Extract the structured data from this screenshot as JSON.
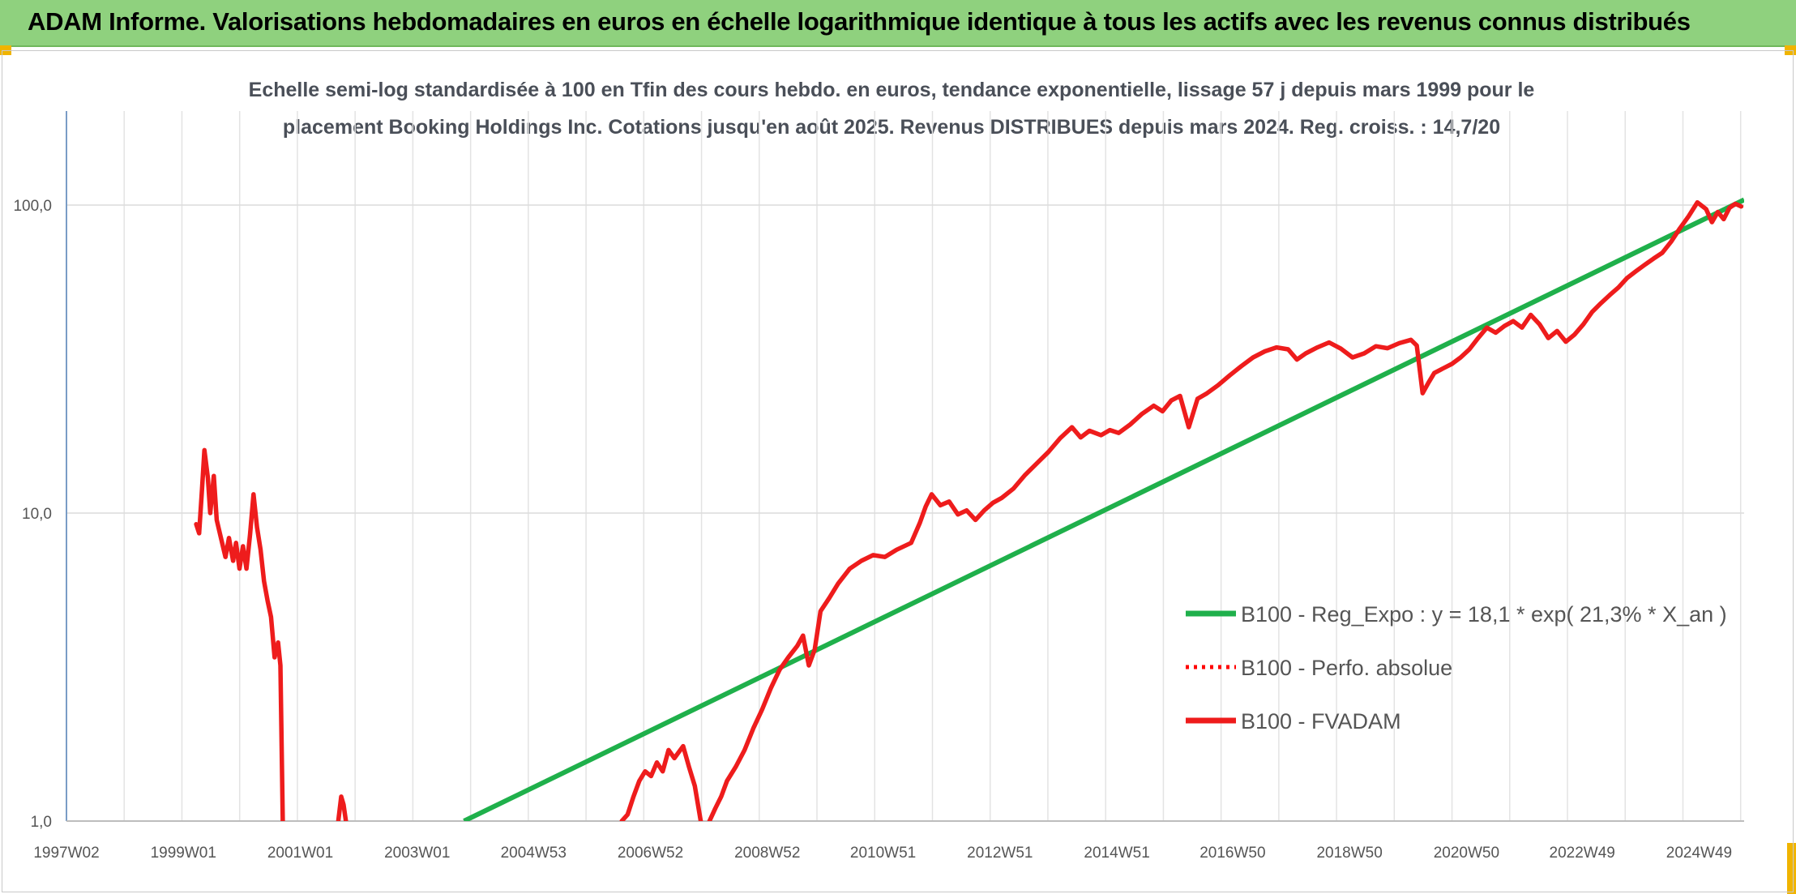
{
  "header": {
    "title": "ADAM Informe. Valorisations hebdomadaires en euros en échelle logarithmique identique à tous les actifs avec les revenus connus distribués"
  },
  "chart_data": {
    "type": "line",
    "title_line1": "Echelle semi-log standardisée à 100 en Tfin des cours hebdo. en euros, tendance exponentielle, lissage 57 j depuis mars 1999 pour le",
    "title_line2": "placement Booking Holdings Inc. Cotations jusqu'en août 2025. Revenus DISTRIBUES depuis mars 2024. Reg. croiss. : 14,7/20",
    "y_scale": "log",
    "ylim": [
      1,
      180
    ],
    "y_ticks": [
      {
        "value": 1,
        "label": "1,0"
      },
      {
        "value": 10,
        "label": "10,0"
      },
      {
        "value": 100,
        "label": "100,0"
      }
    ],
    "xlim": [
      1997.0,
      2025.7
    ],
    "x_ticks": [
      {
        "value": 1997.0,
        "label": "1997W02"
      },
      {
        "value": 1999.0,
        "label": "1999W01"
      },
      {
        "value": 2001.0,
        "label": "2001W01"
      },
      {
        "value": 2003.0,
        "label": "2003W01"
      },
      {
        "value": 2004.99,
        "label": "2004W53"
      },
      {
        "value": 2006.99,
        "label": "2006W52"
      },
      {
        "value": 2008.99,
        "label": "2008W52"
      },
      {
        "value": 2010.97,
        "label": "2010W51"
      },
      {
        "value": 2012.97,
        "label": "2012W51"
      },
      {
        "value": 2014.97,
        "label": "2014W51"
      },
      {
        "value": 2016.95,
        "label": "2016W50"
      },
      {
        "value": 2018.95,
        "label": "2018W50"
      },
      {
        "value": 2020.95,
        "label": "2020W50"
      },
      {
        "value": 2022.93,
        "label": "2022W49"
      },
      {
        "value": 2024.93,
        "label": "2024W49"
      }
    ],
    "grid": "vertical-and-horizontal",
    "legend_position": "right-center",
    "series": [
      {
        "name": "B100 - Reg_Expo : y = 18,1 * exp( 21,3% *  X_an )",
        "color": "#1fb04b",
        "style": "solid",
        "points": [
          [
            2003.8,
            1.0
          ],
          [
            2025.7,
            104
          ]
        ]
      },
      {
        "name": "B100 - Perfo. absolue",
        "color": "#ff0000",
        "style": "dotted",
        "points": []
      },
      {
        "name": "B100 - FVADAM",
        "color": "#ee1c1c",
        "style": "solid",
        "segments": [
          [
            [
              1999.22,
              9.2
            ],
            [
              1999.27,
              8.6
            ],
            [
              1999.32,
              12.0
            ],
            [
              1999.36,
              16.0
            ],
            [
              1999.42,
              13.0
            ],
            [
              1999.46,
              10.0
            ],
            [
              1999.52,
              13.2
            ],
            [
              1999.57,
              9.5
            ],
            [
              1999.65,
              8.2
            ],
            [
              1999.72,
              7.2
            ],
            [
              1999.78,
              8.3
            ],
            [
              1999.85,
              7.0
            ],
            [
              1999.9,
              8.0
            ],
            [
              1999.96,
              6.6
            ],
            [
              2000.02,
              7.8
            ],
            [
              2000.08,
              6.6
            ],
            [
              2000.14,
              8.5
            ],
            [
              2000.2,
              11.5
            ],
            [
              2000.26,
              9.0
            ],
            [
              2000.32,
              7.6
            ],
            [
              2000.38,
              6.0
            ],
            [
              2000.44,
              5.2
            ],
            [
              2000.5,
              4.6
            ],
            [
              2000.56,
              3.4
            ],
            [
              2000.62,
              3.8
            ],
            [
              2000.66,
              3.2
            ],
            [
              2000.7,
              1.0
            ]
          ],
          [
            [
              2001.65,
              1.0
            ],
            [
              2001.7,
              1.2
            ],
            [
              2001.74,
              1.13
            ],
            [
              2001.78,
              1.0
            ]
          ],
          [
            [
              2006.5,
              1.0
            ],
            [
              2006.6,
              1.05
            ],
            [
              2006.7,
              1.2
            ],
            [
              2006.8,
              1.35
            ],
            [
              2006.9,
              1.45
            ],
            [
              2007.0,
              1.4
            ],
            [
              2007.1,
              1.55
            ],
            [
              2007.2,
              1.45
            ],
            [
              2007.3,
              1.7
            ],
            [
              2007.4,
              1.6
            ],
            [
              2007.55,
              1.75
            ],
            [
              2007.65,
              1.5
            ],
            [
              2007.75,
              1.3
            ],
            [
              2007.85,
              1.0
            ]
          ],
          [
            [
              2008.0,
              1.0
            ],
            [
              2008.1,
              1.1
            ],
            [
              2008.2,
              1.2
            ],
            [
              2008.3,
              1.35
            ],
            [
              2008.45,
              1.5
            ],
            [
              2008.6,
              1.7
            ],
            [
              2008.75,
              2.0
            ],
            [
              2008.9,
              2.3
            ],
            [
              2009.05,
              2.7
            ],
            [
              2009.2,
              3.1
            ],
            [
              2009.35,
              3.4
            ],
            [
              2009.5,
              3.7
            ],
            [
              2009.6,
              4.0
            ],
            [
              2009.7,
              3.2
            ],
            [
              2009.8,
              3.6
            ],
            [
              2009.9,
              4.8
            ],
            [
              2010.05,
              5.3
            ],
            [
              2010.2,
              5.9
            ],
            [
              2010.4,
              6.6
            ],
            [
              2010.6,
              7.0
            ],
            [
              2010.8,
              7.3
            ],
            [
              2011.0,
              7.2
            ],
            [
              2011.2,
              7.6
            ],
            [
              2011.45,
              8.0
            ],
            [
              2011.6,
              9.3
            ],
            [
              2011.7,
              10.5
            ],
            [
              2011.8,
              11.5
            ],
            [
              2011.95,
              10.6
            ],
            [
              2012.1,
              10.9
            ],
            [
              2012.25,
              9.9
            ],
            [
              2012.4,
              10.2
            ],
            [
              2012.55,
              9.5
            ],
            [
              2012.7,
              10.2
            ],
            [
              2012.85,
              10.8
            ],
            [
              2013.0,
              11.2
            ],
            [
              2013.2,
              12.0
            ],
            [
              2013.4,
              13.3
            ],
            [
              2013.6,
              14.5
            ],
            [
              2013.8,
              15.8
            ],
            [
              2014.0,
              17.5
            ],
            [
              2014.2,
              19.0
            ],
            [
              2014.35,
              17.6
            ],
            [
              2014.5,
              18.5
            ],
            [
              2014.7,
              17.9
            ],
            [
              2014.85,
              18.6
            ],
            [
              2015.0,
              18.2
            ],
            [
              2015.2,
              19.4
            ],
            [
              2015.4,
              21.0
            ],
            [
              2015.6,
              22.3
            ],
            [
              2015.75,
              21.4
            ],
            [
              2015.9,
              23.2
            ],
            [
              2016.05,
              24.0
            ],
            [
              2016.2,
              19.0
            ],
            [
              2016.35,
              23.5
            ],
            [
              2016.5,
              24.4
            ],
            [
              2016.7,
              26.0
            ],
            [
              2016.9,
              28.0
            ],
            [
              2017.1,
              30.0
            ],
            [
              2017.3,
              32.0
            ],
            [
              2017.5,
              33.5
            ],
            [
              2017.7,
              34.5
            ],
            [
              2017.9,
              34.0
            ],
            [
              2018.05,
              31.5
            ],
            [
              2018.2,
              33.0
            ],
            [
              2018.4,
              34.5
            ],
            [
              2018.6,
              35.8
            ],
            [
              2018.8,
              34.2
            ],
            [
              2019.0,
              32.0
            ],
            [
              2019.2,
              33.0
            ],
            [
              2019.4,
              34.8
            ],
            [
              2019.6,
              34.3
            ],
            [
              2019.8,
              35.6
            ],
            [
              2020.0,
              36.5
            ],
            [
              2020.1,
              35.0
            ],
            [
              2020.2,
              24.5
            ],
            [
              2020.3,
              26.5
            ],
            [
              2020.4,
              28.5
            ],
            [
              2020.55,
              29.5
            ],
            [
              2020.7,
              30.5
            ],
            [
              2020.85,
              32.0
            ],
            [
              2021.0,
              34.0
            ],
            [
              2021.15,
              37.0
            ],
            [
              2021.3,
              40.0
            ],
            [
              2021.45,
              38.5
            ],
            [
              2021.6,
              40.5
            ],
            [
              2021.75,
              42.0
            ],
            [
              2021.9,
              40.0
            ],
            [
              2022.05,
              44.0
            ],
            [
              2022.2,
              41.0
            ],
            [
              2022.35,
              37.0
            ],
            [
              2022.5,
              39.0
            ],
            [
              2022.65,
              36.0
            ],
            [
              2022.8,
              38.0
            ],
            [
              2022.95,
              41.0
            ],
            [
              2023.1,
              45.0
            ],
            [
              2023.25,
              48.0
            ],
            [
              2023.4,
              51.0
            ],
            [
              2023.55,
              54.0
            ],
            [
              2023.7,
              58.0
            ],
            [
              2023.85,
              61.0
            ],
            [
              2024.0,
              64.0
            ],
            [
              2024.15,
              67.0
            ],
            [
              2024.3,
              70.0
            ],
            [
              2024.45,
              76.0
            ],
            [
              2024.6,
              84.0
            ],
            [
              2024.75,
              92.0
            ],
            [
              2024.9,
              102.0
            ],
            [
              2025.05,
              97.0
            ],
            [
              2025.15,
              88.0
            ],
            [
              2025.25,
              95.0
            ],
            [
              2025.35,
              90.0
            ],
            [
              2025.45,
              98.0
            ],
            [
              2025.55,
              101.0
            ],
            [
              2025.65,
              99.0
            ]
          ]
        ]
      }
    ]
  }
}
